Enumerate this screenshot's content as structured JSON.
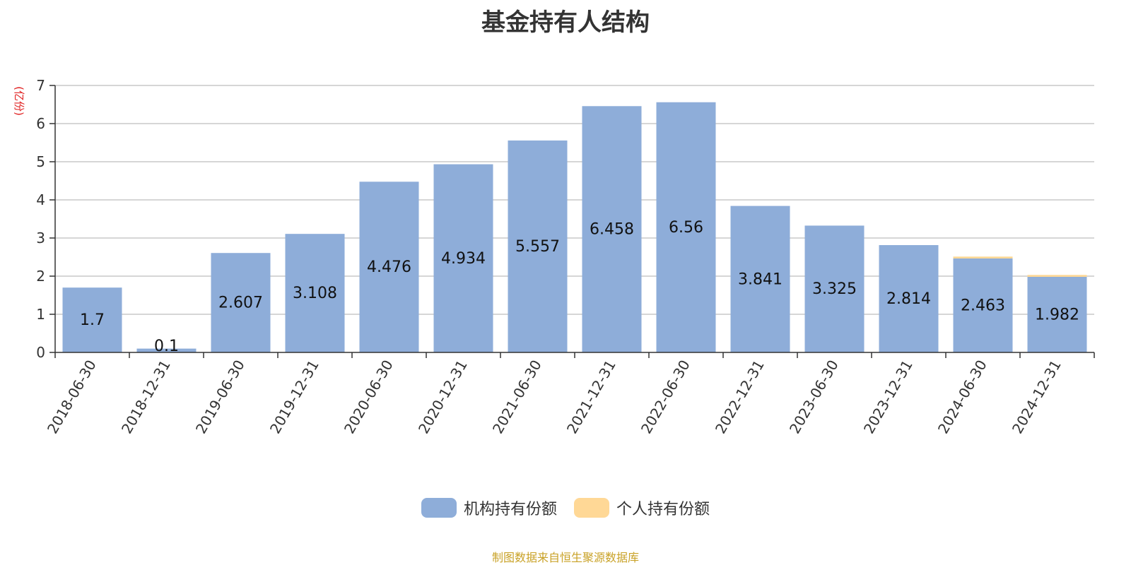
{
  "title": "基金持有人结构",
  "source_note": "制图数据来自恒生聚源数据库",
  "colors": {
    "institutional": "#8eadd9",
    "individual": "#ffd896",
    "grid": "#c8c8c8",
    "axis": "#333333",
    "unit_text": "#e02020",
    "source_text": "#c9a227"
  },
  "chart_data": {
    "type": "bar",
    "stacked": true,
    "title": "基金持有人结构",
    "ylabel": "(亿份)",
    "xlabel": "",
    "ylim": [
      0,
      7
    ],
    "yticks": [
      "0",
      "1",
      "2",
      "3",
      "4",
      "5",
      "6",
      "7"
    ],
    "grid": true,
    "legend_position": "bottom",
    "categories": [
      "2018-06-30",
      "2018-12-31",
      "2019-06-30",
      "2019-12-31",
      "2020-06-30",
      "2020-12-31",
      "2021-06-30",
      "2021-12-31",
      "2022-06-30",
      "2022-12-31",
      "2023-06-30",
      "2023-12-31",
      "2024-06-30",
      "2024-12-31"
    ],
    "series": [
      {
        "name": "机构持有份额",
        "color": "#8eadd9",
        "values": [
          1.7,
          0.1,
          2.607,
          3.108,
          4.476,
          4.934,
          5.557,
          6.458,
          6.56,
          3.841,
          3.325,
          2.814,
          2.463,
          1.982
        ],
        "labels": [
          "1.7",
          "0.1",
          "2.607",
          "3.108",
          "4.476",
          "4.934",
          "5.557",
          "6.458",
          "6.56",
          "3.841",
          "3.325",
          "2.814",
          "2.463",
          "1.982"
        ]
      },
      {
        "name": "个人持有份额",
        "color": "#ffd896",
        "values": [
          0,
          0,
          0,
          0,
          0,
          0,
          0,
          0,
          0,
          0,
          0,
          0,
          0.05,
          0.05
        ]
      }
    ]
  }
}
